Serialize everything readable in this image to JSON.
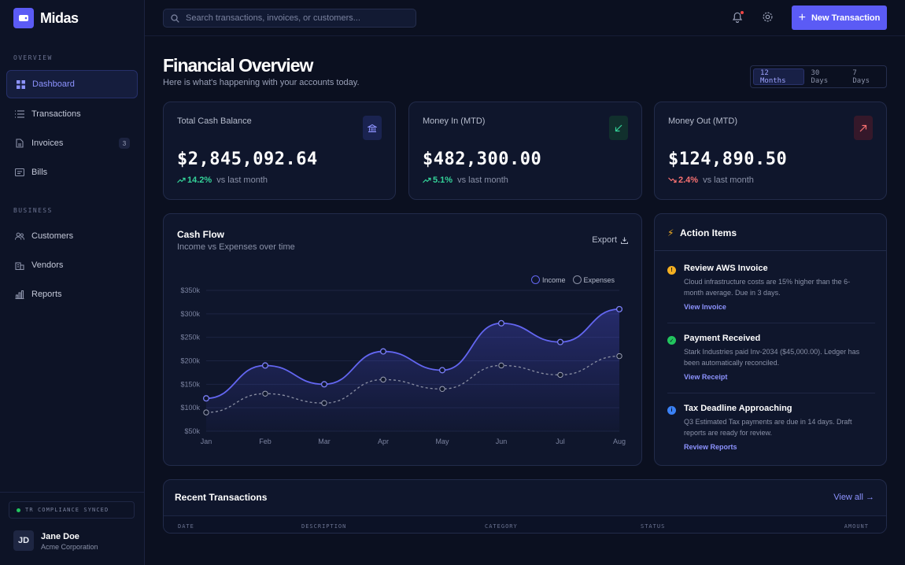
{
  "brand": {
    "name": "Midas"
  },
  "sidebar": {
    "sections": [
      {
        "label": "OVERVIEW",
        "items": [
          {
            "label": "Dashboard",
            "icon": "grid-icon",
            "active": true
          },
          {
            "label": "Transactions",
            "icon": "list-icon"
          },
          {
            "label": "Invoices",
            "icon": "document-icon",
            "badge": "3"
          },
          {
            "label": "Bills",
            "icon": "receipt-icon"
          }
        ]
      },
      {
        "label": "BUSINESS",
        "items": [
          {
            "label": "Customers",
            "icon": "users-icon"
          },
          {
            "label": "Vendors",
            "icon": "building-icon"
          },
          {
            "label": "Reports",
            "icon": "bar-chart-icon"
          }
        ]
      }
    ],
    "sync_status": "TR COMPLIANCE SYNCED",
    "user": {
      "initials": "JD",
      "name": "Jane Doe",
      "org": "Acme Corporation"
    }
  },
  "topbar": {
    "search_placeholder": "Search transactions, invoices, or customers...",
    "new_button": "New Transaction"
  },
  "header": {
    "title": "Financial Overview",
    "subtitle": "Here is what's happening with your accounts today.",
    "ranges": [
      "12 Months",
      "30 Days",
      "7 Days"
    ],
    "active_range": "12 Months"
  },
  "stats": [
    {
      "label": "Total Cash Balance",
      "value": "$2,845,092.64",
      "delta": "14.2%",
      "vs": "vs last month",
      "trend": "up",
      "icon": "bank-icon",
      "color": "#34d399"
    },
    {
      "label": "Money In (MTD)",
      "value": "$482,300.00",
      "delta": "5.1%",
      "vs": "vs last month",
      "trend": "up",
      "icon": "arrow-down-left-icon",
      "color": "#34d399"
    },
    {
      "label": "Money Out (MTD)",
      "value": "$124,890.50",
      "delta": "2.4%",
      "vs": "vs last month",
      "trend": "down",
      "icon": "arrow-up-right-icon",
      "color": "#f87171"
    }
  ],
  "cashflow": {
    "title": "Cash Flow",
    "subtitle": "Income vs Expenses over time",
    "export_label": "Export",
    "legend": [
      "Income",
      "Expenses"
    ]
  },
  "chart_data": {
    "type": "line",
    "x": [
      "Jan",
      "Feb",
      "Mar",
      "Apr",
      "May",
      "Jun",
      "Jul",
      "Aug"
    ],
    "series": [
      {
        "name": "Income",
        "values": [
          120000,
          190000,
          150000,
          220000,
          180000,
          280000,
          240000,
          310000
        ],
        "color": "#6366f1"
      },
      {
        "name": "Expenses",
        "values": [
          90000,
          130000,
          110000,
          160000,
          140000,
          190000,
          170000,
          210000
        ],
        "color": "#8a8fa3"
      }
    ],
    "y_ticks": [
      "$350k",
      "$300k",
      "$250k",
      "$200k",
      "$150k",
      "$100k",
      "$50k"
    ],
    "ylim": [
      50000,
      350000
    ],
    "grid": true,
    "legend_position": "top-right"
  },
  "action_items": {
    "title": "Action Items",
    "items": [
      {
        "title": "Review AWS Invoice",
        "desc": "Cloud infrastructure costs are 15% higher than the 6-month average. Due in 3 days.",
        "link": "View Invoice",
        "status": "warning",
        "color": "#f5b021"
      },
      {
        "title": "Payment Received",
        "desc": "Stark Industries paid Inv-2034 ($45,000.00). Ledger has been automatically reconciled.",
        "link": "View Receipt",
        "status": "success",
        "color": "#22c55e"
      },
      {
        "title": "Tax Deadline Approaching",
        "desc": "Q3 Estimated Tax payments are due in 14 days. Draft reports are ready for review.",
        "link": "Review Reports",
        "status": "info",
        "color": "#3b82f6"
      }
    ]
  },
  "recent": {
    "title": "Recent Transactions",
    "view_all": "View all →",
    "columns": [
      "DATE",
      "DESCRIPTION",
      "CATEGORY",
      "STATUS",
      "AMOUNT"
    ]
  }
}
